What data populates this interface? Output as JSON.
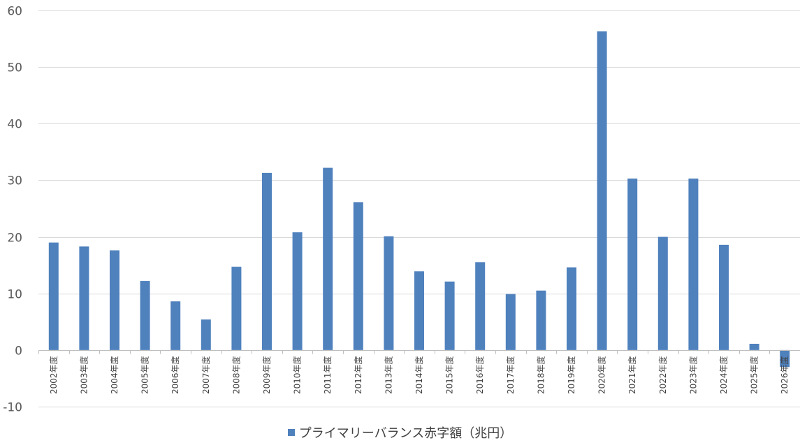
{
  "chart_data": {
    "type": "bar",
    "categories": [
      "2002年度",
      "2003年度",
      "2004年度",
      "2005年度",
      "2006年度",
      "2007年度",
      "2008年度",
      "2009年度",
      "2010年度",
      "2011年度",
      "2012年度",
      "2013年度",
      "2014年度",
      "2015年度",
      "2016年度",
      "2017年度",
      "2018年度",
      "2019年度",
      "2020年度",
      "2021年度",
      "2022年度",
      "2023年度",
      "2024年度",
      "2025年度",
      "2026年度"
    ],
    "series": [
      {
        "name": "プライマリーバランス赤字額（兆円）",
        "color": "#4f81bd",
        "values": [
          19.0,
          18.3,
          17.6,
          12.2,
          8.6,
          5.4,
          14.7,
          31.3,
          20.8,
          32.2,
          26.1,
          20.1,
          13.9,
          12.1,
          15.5,
          9.9,
          10.5,
          14.6,
          56.3,
          30.3,
          20.0,
          30.3,
          18.6,
          1.1,
          -3.0
        ]
      }
    ],
    "ylim": [
      -10,
      60
    ],
    "yticks": [
      -10,
      0,
      10,
      20,
      30,
      40,
      50,
      60
    ],
    "grid": true,
    "legend": "bottom"
  }
}
